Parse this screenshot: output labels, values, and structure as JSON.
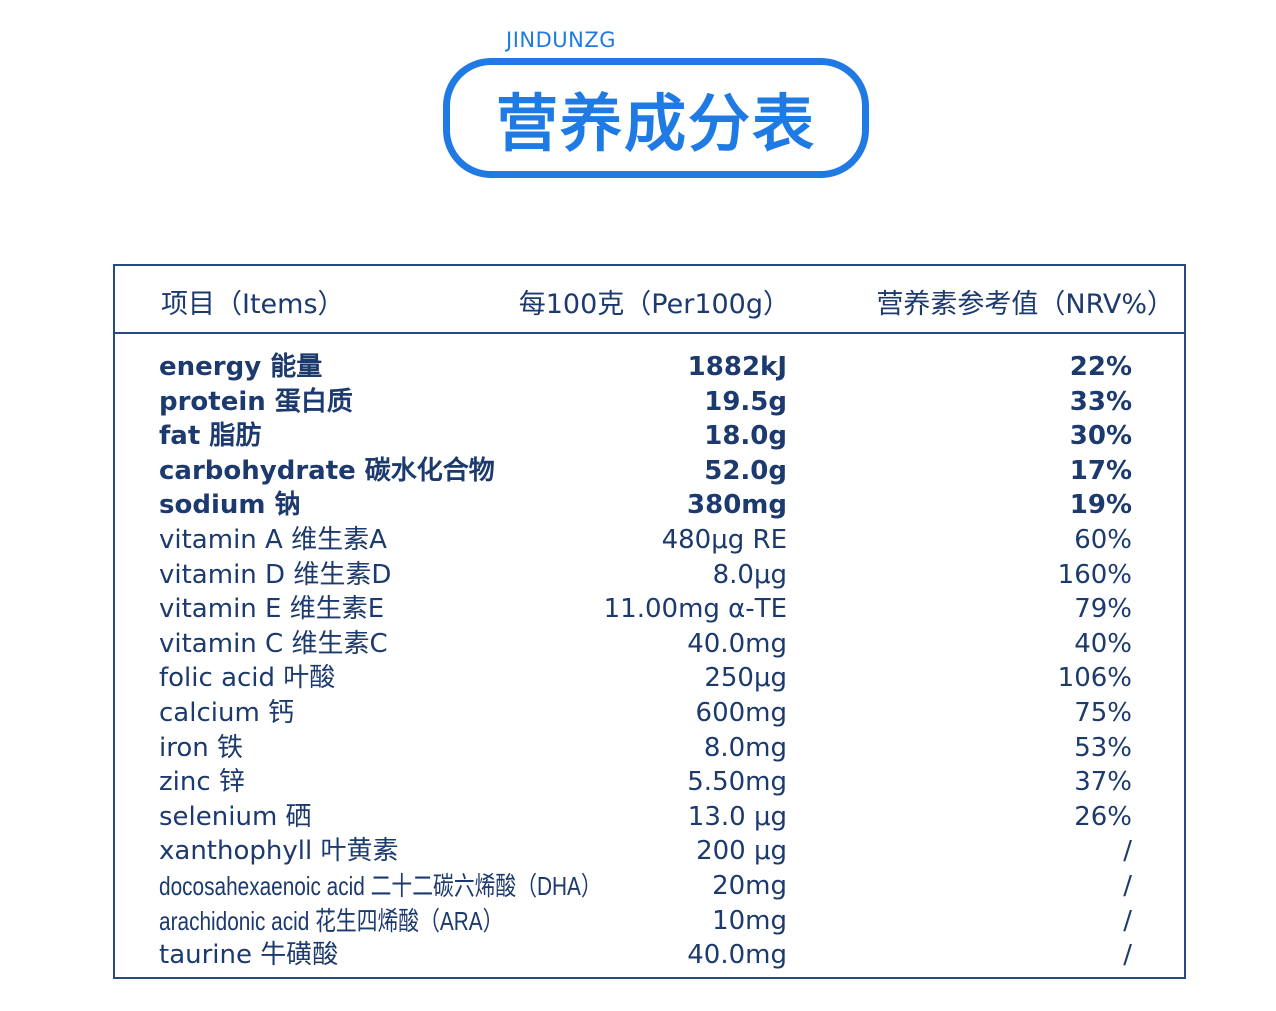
{
  "brand": "JINDUNZG",
  "title": "营养成分表",
  "colors": {
    "accent": "#1f7be3",
    "text": "#1c3a6e",
    "border": "#274a84"
  },
  "table": {
    "headers": [
      "项目（Items）",
      "每100克（Per100g）",
      "营养素参考值（NRV%）"
    ],
    "rows": [
      {
        "name": "energy  能量",
        "amount": "1882kJ",
        "nrv": "22%",
        "bold": true
      },
      {
        "name": "protein  蛋白质",
        "amount": "19.5g",
        "nrv": "33%",
        "bold": true
      },
      {
        "name": "fat  脂肪",
        "amount": "18.0g",
        "nrv": "30%",
        "bold": true
      },
      {
        "name": "carbohydrate  碳水化合物",
        "amount": "52.0g",
        "nrv": "17%",
        "bold": true
      },
      {
        "name": "sodium  钠",
        "amount": "380mg",
        "nrv": "19%",
        "bold": true
      },
      {
        "name": "vitamin A   维生素A",
        "amount": "480μg RE",
        "nrv": "60%",
        "bold": false
      },
      {
        "name": "vitamin D   维生素D",
        "amount": "8.0μg",
        "nrv": "160%",
        "bold": false
      },
      {
        "name": "vitamin E   维生素E",
        "amount": "11.00mg α-TE",
        "nrv": "79%",
        "bold": false
      },
      {
        "name": "vitamin C   维生素C",
        "amount": "40.0mg",
        "nrv": "40%",
        "bold": false
      },
      {
        "name": "folic acid  叶酸",
        "amount": "250μg",
        "nrv": "106%",
        "bold": false
      },
      {
        "name": "calcium  钙",
        "amount": "600mg",
        "nrv": "75%",
        "bold": false
      },
      {
        "name": "iron  铁",
        "amount": "8.0mg",
        "nrv": "53%",
        "bold": false
      },
      {
        "name": "zinc  锌",
        "amount": "5.50mg",
        "nrv": "37%",
        "bold": false
      },
      {
        "name": "selenium  硒",
        "amount": "13.0 μg",
        "nrv": "26%",
        "bold": false
      },
      {
        "name": "xanthophyll  叶黄素",
        "amount": "200 μg",
        "nrv": "/",
        "bold": false
      },
      {
        "name": "docosahexaenoic acid  二十二碳六烯酸（DHA）",
        "amount": "20mg",
        "nrv": "/",
        "bold": false
      },
      {
        "name": "arachidonic acid  花生四烯酸（ARA）",
        "amount": "10mg",
        "nrv": "/",
        "bold": false
      },
      {
        "name": "taurine  牛磺酸",
        "amount": "40.0mg",
        "nrv": "/",
        "bold": false
      }
    ]
  }
}
